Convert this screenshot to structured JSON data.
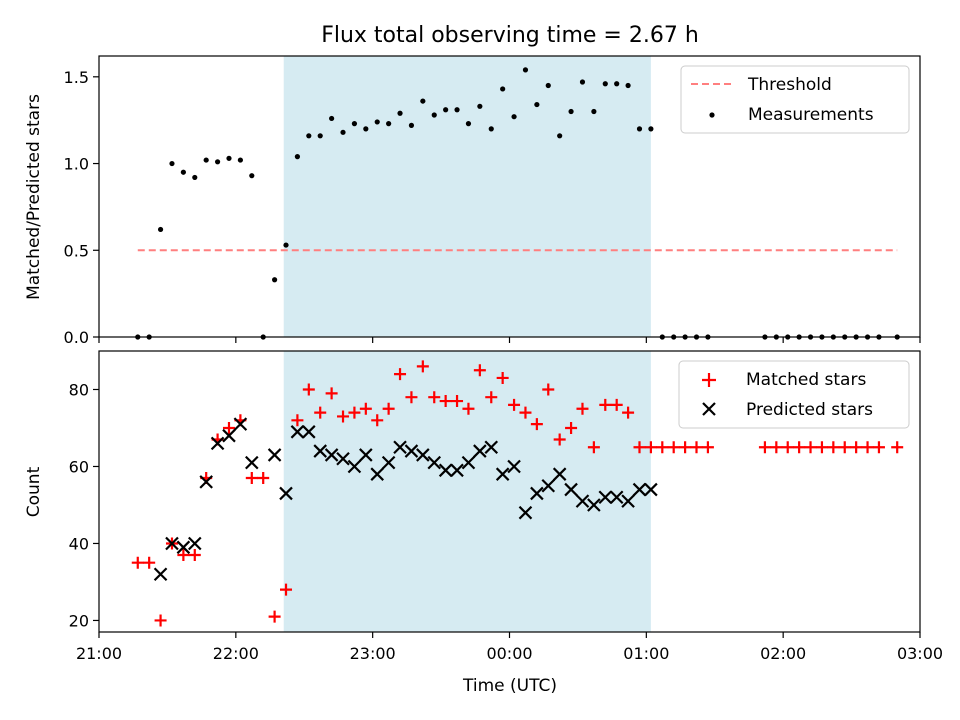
{
  "title": "Flux total observing time = 2.67 h",
  "colors": {
    "shade": "#add8e6",
    "threshold": "#ff7f7f",
    "measurement": "#000000",
    "matched": "#ff0000",
    "predicted": "#000000"
  },
  "chart_data": [
    {
      "type": "scatter",
      "ylabel": "Matched/Predicted stars",
      "xlim": [
        "21:00",
        "03:00"
      ],
      "ylim": [
        0,
        1.62
      ],
      "yticks": [
        "0.0",
        "0.5",
        "1.0",
        "1.5"
      ],
      "shaded_span": [
        "22:21",
        "01:02"
      ],
      "legend": {
        "placement": "top-right",
        "entries": [
          "Threshold",
          "Measurements"
        ]
      },
      "threshold": {
        "name": "Threshold",
        "value": 0.5,
        "x": [
          "21:17",
          "02:50"
        ]
      },
      "series": [
        {
          "name": "Measurements",
          "marker": "dot",
          "points": [
            [
              "21:17",
              0.0
            ],
            [
              "21:22",
              0.0
            ],
            [
              "21:27",
              0.62
            ],
            [
              "21:32",
              1.0
            ],
            [
              "21:37",
              0.95
            ],
            [
              "21:42",
              0.92
            ],
            [
              "21:47",
              1.02
            ],
            [
              "21:52",
              1.01
            ],
            [
              "21:57",
              1.03
            ],
            [
              "22:02",
              1.02
            ],
            [
              "22:07",
              0.93
            ],
            [
              "22:12",
              0.0
            ],
            [
              "22:17",
              0.33
            ],
            [
              "22:22",
              0.53
            ],
            [
              "22:27",
              1.04
            ],
            [
              "22:32",
              1.16
            ],
            [
              "22:37",
              1.16
            ],
            [
              "22:42",
              1.26
            ],
            [
              "22:47",
              1.18
            ],
            [
              "22:52",
              1.23
            ],
            [
              "22:57",
              1.2
            ],
            [
              "23:02",
              1.24
            ],
            [
              "23:07",
              1.23
            ],
            [
              "23:12",
              1.29
            ],
            [
              "23:17",
              1.22
            ],
            [
              "23:22",
              1.36
            ],
            [
              "23:27",
              1.28
            ],
            [
              "23:32",
              1.31
            ],
            [
              "23:37",
              1.31
            ],
            [
              "23:42",
              1.23
            ],
            [
              "23:47",
              1.33
            ],
            [
              "23:52",
              1.2
            ],
            [
              "23:57",
              1.43
            ],
            [
              "00:02",
              1.27
            ],
            [
              "00:07",
              1.54
            ],
            [
              "00:12",
              1.34
            ],
            [
              "00:17",
              1.45
            ],
            [
              "00:22",
              1.16
            ],
            [
              "00:27",
              1.3
            ],
            [
              "00:32",
              1.47
            ],
            [
              "00:37",
              1.3
            ],
            [
              "00:42",
              1.46
            ],
            [
              "00:47",
              1.46
            ],
            [
              "00:52",
              1.45
            ],
            [
              "00:57",
              1.2
            ],
            [
              "01:02",
              1.2
            ],
            [
              "01:07",
              0.0
            ],
            [
              "01:12",
              0.0
            ],
            [
              "01:17",
              0.0
            ],
            [
              "01:22",
              0.0
            ],
            [
              "01:27",
              0.0
            ],
            [
              "01:52",
              0.0
            ],
            [
              "01:57",
              0.0
            ],
            [
              "02:02",
              0.0
            ],
            [
              "02:07",
              0.0
            ],
            [
              "02:12",
              0.0
            ],
            [
              "02:17",
              0.0
            ],
            [
              "02:22",
              0.0
            ],
            [
              "02:27",
              0.0
            ],
            [
              "02:32",
              0.0
            ],
            [
              "02:37",
              0.0
            ],
            [
              "02:42",
              0.0
            ],
            [
              "02:50",
              0.0
            ]
          ]
        }
      ]
    },
    {
      "type": "scatter",
      "xlabel": "Time (UTC)",
      "ylabel": "Count",
      "xlim": [
        "21:00",
        "03:00"
      ],
      "ylim": [
        17,
        90
      ],
      "xticks": [
        "21:00",
        "22:00",
        "23:00",
        "00:00",
        "01:00",
        "02:00",
        "03:00"
      ],
      "yticks": [
        "20",
        "40",
        "60",
        "80"
      ],
      "shaded_span": [
        "22:21",
        "01:02"
      ],
      "legend": {
        "placement": "top-right",
        "entries": [
          "Matched stars",
          "Predicted stars"
        ]
      },
      "series": [
        {
          "name": "Matched stars",
          "marker": "plus",
          "points": [
            [
              "21:17",
              35
            ],
            [
              "21:22",
              35
            ],
            [
              "21:27",
              20
            ],
            [
              "21:32",
              40
            ],
            [
              "21:37",
              37
            ],
            [
              "21:42",
              37
            ],
            [
              "21:47",
              57
            ],
            [
              "21:52",
              67
            ],
            [
              "21:57",
              70
            ],
            [
              "22:02",
              72
            ],
            [
              "22:07",
              57
            ],
            [
              "22:12",
              57
            ],
            [
              "22:17",
              21
            ],
            [
              "22:22",
              28
            ],
            [
              "22:27",
              72
            ],
            [
              "22:32",
              80
            ],
            [
              "22:37",
              74
            ],
            [
              "22:42",
              79
            ],
            [
              "22:47",
              73
            ],
            [
              "22:52",
              74
            ],
            [
              "22:57",
              75
            ],
            [
              "23:02",
              72
            ],
            [
              "23:07",
              75
            ],
            [
              "23:12",
              84
            ],
            [
              "23:17",
              78
            ],
            [
              "23:22",
              86
            ],
            [
              "23:27",
              78
            ],
            [
              "23:32",
              77
            ],
            [
              "23:37",
              77
            ],
            [
              "23:42",
              75
            ],
            [
              "23:47",
              85
            ],
            [
              "23:52",
              78
            ],
            [
              "23:57",
              83
            ],
            [
              "00:02",
              76
            ],
            [
              "00:07",
              74
            ],
            [
              "00:12",
              71
            ],
            [
              "00:17",
              80
            ],
            [
              "00:22",
              67
            ],
            [
              "00:27",
              70
            ],
            [
              "00:32",
              75
            ],
            [
              "00:37",
              65
            ],
            [
              "00:42",
              76
            ],
            [
              "00:47",
              76
            ],
            [
              "00:52",
              74
            ],
            [
              "00:57",
              65
            ],
            [
              "01:02",
              65
            ],
            [
              "01:07",
              65
            ],
            [
              "01:12",
              65
            ],
            [
              "01:17",
              65
            ],
            [
              "01:22",
              65
            ],
            [
              "01:27",
              65
            ],
            [
              "01:52",
              65
            ],
            [
              "01:57",
              65
            ],
            [
              "02:02",
              65
            ],
            [
              "02:07",
              65
            ],
            [
              "02:12",
              65
            ],
            [
              "02:17",
              65
            ],
            [
              "02:22",
              65
            ],
            [
              "02:27",
              65
            ],
            [
              "02:32",
              65
            ],
            [
              "02:37",
              65
            ],
            [
              "02:42",
              65
            ],
            [
              "02:50",
              65
            ]
          ]
        },
        {
          "name": "Predicted stars",
          "marker": "x",
          "points": [
            [
              "21:27",
              32
            ],
            [
              "21:32",
              40
            ],
            [
              "21:37",
              39
            ],
            [
              "21:42",
              40
            ],
            [
              "21:47",
              56
            ],
            [
              "21:52",
              66
            ],
            [
              "21:57",
              68
            ],
            [
              "22:02",
              71
            ],
            [
              "22:07",
              61
            ],
            [
              "22:17",
              63
            ],
            [
              "22:22",
              53
            ],
            [
              "22:27",
              69
            ],
            [
              "22:32",
              69
            ],
            [
              "22:37",
              64
            ],
            [
              "22:42",
              63
            ],
            [
              "22:47",
              62
            ],
            [
              "22:52",
              60
            ],
            [
              "22:57",
              63
            ],
            [
              "23:02",
              58
            ],
            [
              "23:07",
              61
            ],
            [
              "23:12",
              65
            ],
            [
              "23:17",
              64
            ],
            [
              "23:22",
              63
            ],
            [
              "23:27",
              61
            ],
            [
              "23:32",
              59
            ],
            [
              "23:37",
              59
            ],
            [
              "23:42",
              61
            ],
            [
              "23:47",
              64
            ],
            [
              "23:52",
              65
            ],
            [
              "23:57",
              58
            ],
            [
              "00:02",
              60
            ],
            [
              "00:07",
              48
            ],
            [
              "00:12",
              53
            ],
            [
              "00:17",
              55
            ],
            [
              "00:22",
              58
            ],
            [
              "00:27",
              54
            ],
            [
              "00:32",
              51
            ],
            [
              "00:37",
              50
            ],
            [
              "00:42",
              52
            ],
            [
              "00:47",
              52
            ],
            [
              "00:52",
              51
            ],
            [
              "00:57",
              54
            ],
            [
              "01:02",
              54
            ]
          ]
        }
      ]
    }
  ]
}
